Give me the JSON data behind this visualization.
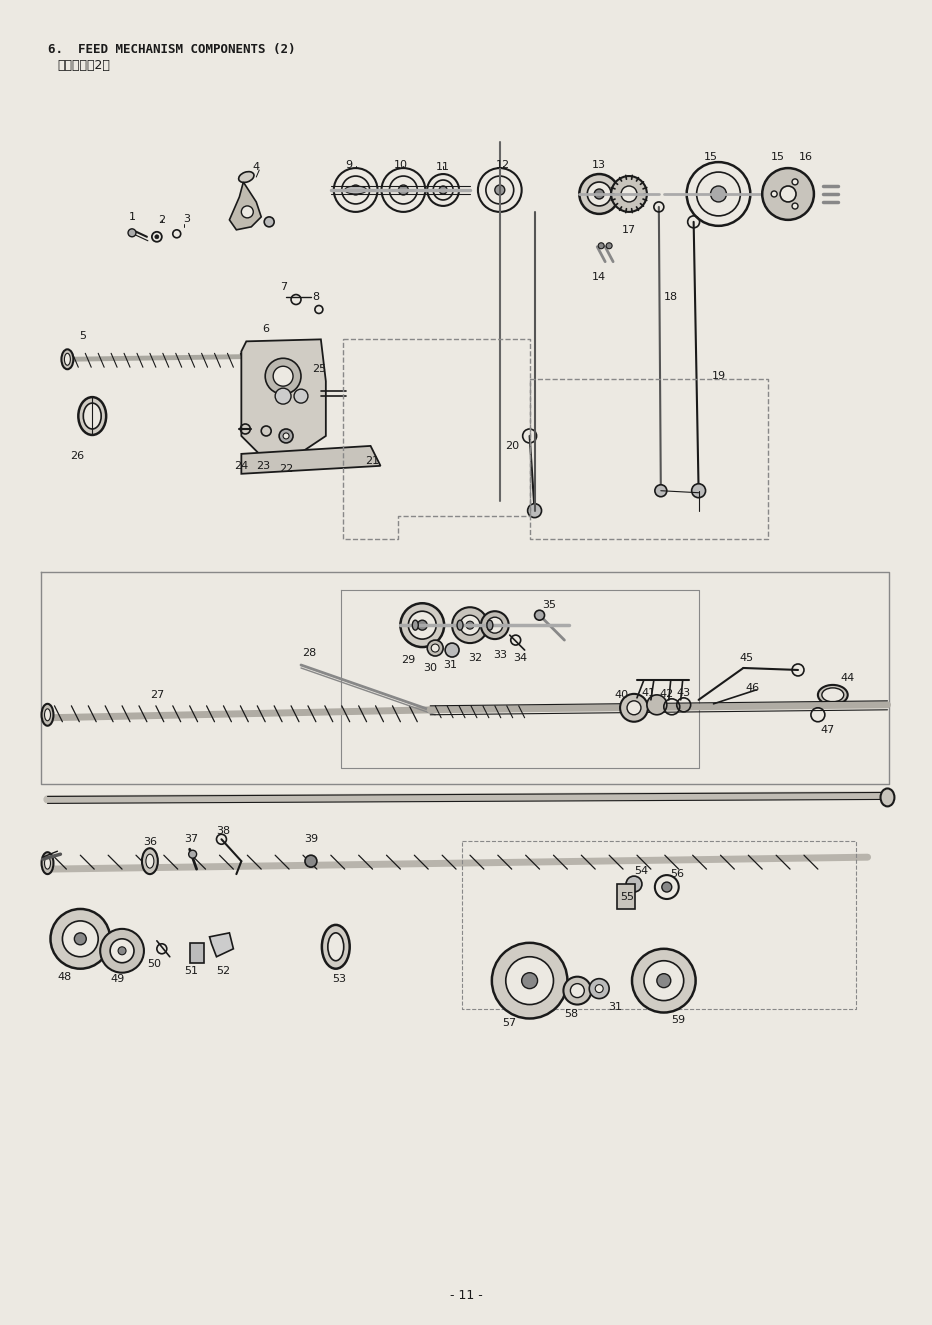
{
  "title_line1": "6.  FEED MECHANISM COMPONENTS (2)",
  "title_line2": "送り関係（2）",
  "page_number": "- 11 -",
  "bg": "#ece9e2",
  "lc": "#1a1a1a",
  "figsize": [
    9.32,
    13.25
  ],
  "dpi": 100
}
